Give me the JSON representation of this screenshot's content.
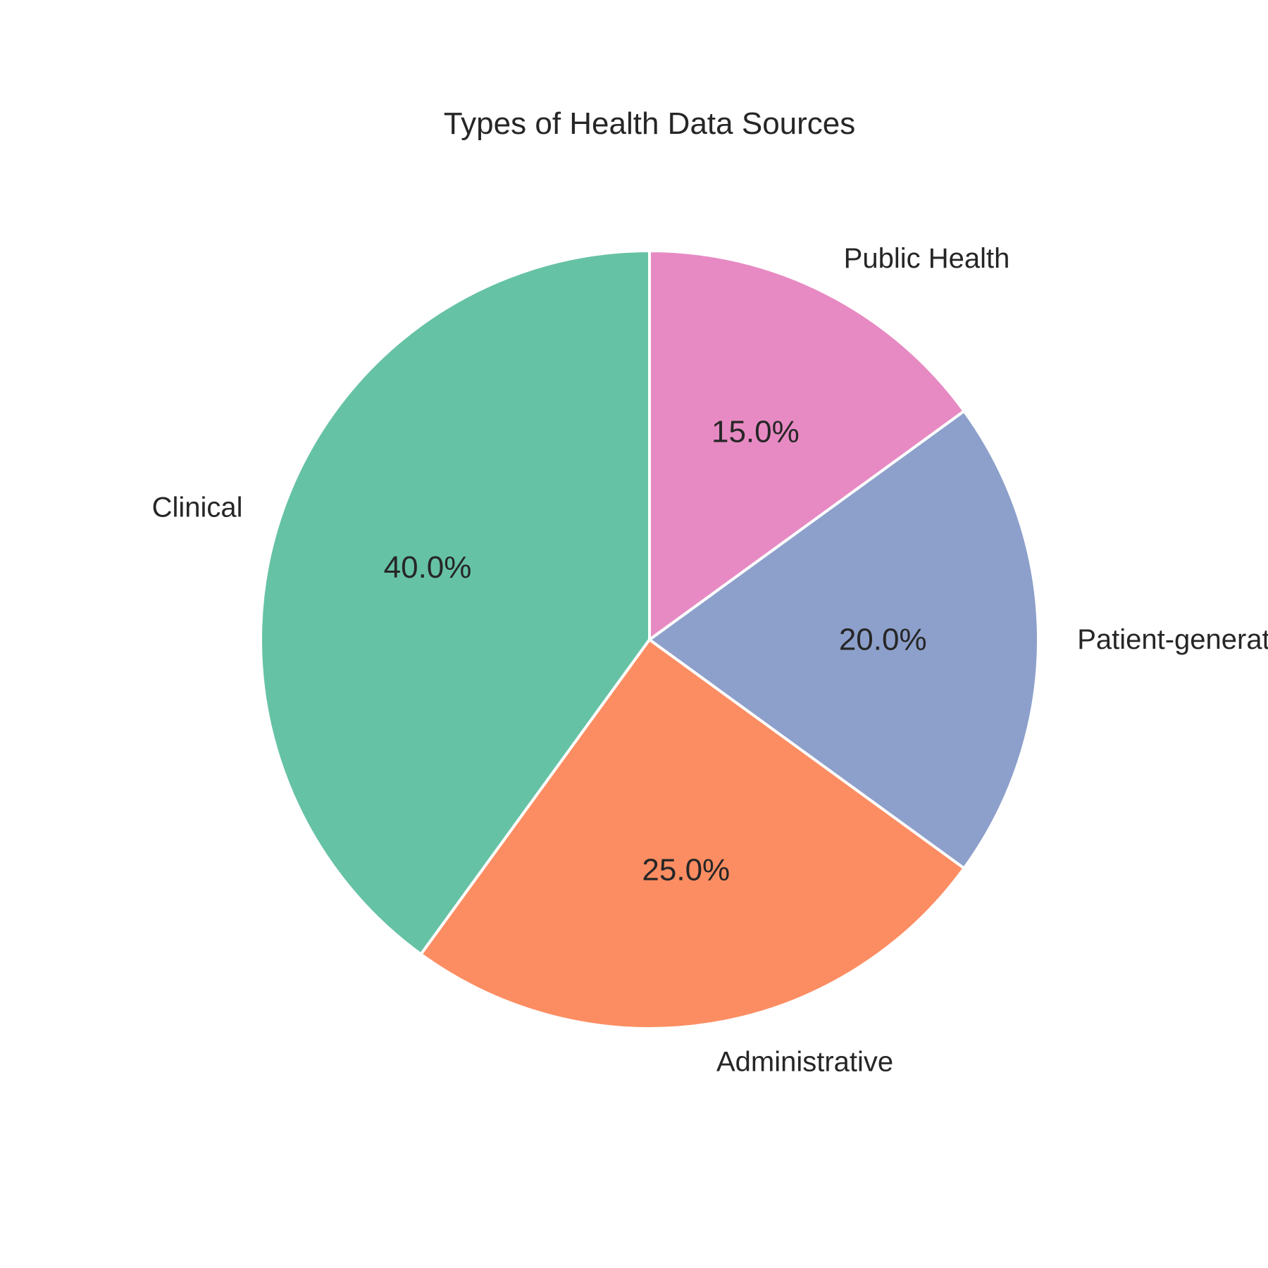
{
  "chart_data": {
    "type": "pie",
    "title": "Types of Health Data Sources",
    "start_angle_deg": 90,
    "direction": "counterclockwise",
    "slices": [
      {
        "label": "Clinical",
        "value": 40.0,
        "pct_text": "40.0%",
        "color": "#66c2a5"
      },
      {
        "label": "Administrative",
        "value": 25.0,
        "pct_text": "25.0%",
        "color": "#fc8d62"
      },
      {
        "label": "Patient-generated",
        "value": 20.0,
        "pct_text": "20.0%",
        "color": "#8da0cb"
      },
      {
        "label": "Public Health",
        "value": 15.0,
        "pct_text": "15.0%",
        "color": "#e78ac3"
      }
    ]
  }
}
